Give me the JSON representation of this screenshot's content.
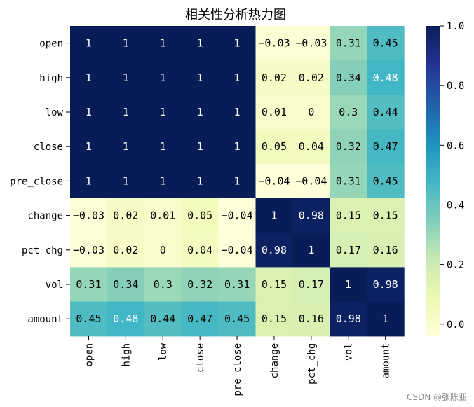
{
  "chart_data": {
    "type": "heatmap",
    "title": "相关性分析热力图",
    "xlabel": "",
    "ylabel": "",
    "row_labels": [
      "open",
      "high",
      "low",
      "close",
      "pre_close",
      "change",
      "pct_chg",
      "vol",
      "amount"
    ],
    "col_labels": [
      "open",
      "high",
      "low",
      "close",
      "pre_close",
      "change",
      "pct_chg",
      "vol",
      "amount"
    ],
    "values": [
      [
        1,
        1,
        1,
        1,
        1,
        -0.03,
        -0.03,
        0.31,
        0.45
      ],
      [
        1,
        1,
        1,
        1,
        1,
        0.02,
        0.02,
        0.34,
        0.48
      ],
      [
        1,
        1,
        1,
        1,
        1,
        0.01,
        0,
        0.3,
        0.44
      ],
      [
        1,
        1,
        1,
        1,
        1,
        0.05,
        0.04,
        0.32,
        0.47
      ],
      [
        1,
        1,
        1,
        1,
        1,
        -0.04,
        -0.04,
        0.31,
        0.45
      ],
      [
        -0.03,
        0.02,
        0.01,
        0.05,
        -0.04,
        1,
        0.98,
        0.15,
        0.15
      ],
      [
        -0.03,
        0.02,
        0,
        0.04,
        -0.04,
        0.98,
        1,
        0.17,
        0.16
      ],
      [
        0.31,
        0.34,
        0.3,
        0.32,
        0.31,
        0.15,
        0.17,
        1,
        0.98
      ],
      [
        0.45,
        0.48,
        0.44,
        0.47,
        0.45,
        0.15,
        0.16,
        0.98,
        1
      ]
    ],
    "colormap": "YlGnBu",
    "colorbar": {
      "range": [
        -0.04,
        1.0
      ],
      "ticks": [
        0.0,
        0.2,
        0.4,
        0.6,
        0.8,
        1.0
      ],
      "tick_labels": [
        "0.0",
        "0.2",
        "0.4",
        "0.6",
        "0.8",
        "1.0"
      ]
    },
    "annotations": true
  },
  "colors": {
    "colormap_stops": [
      "#ffffd9",
      "#edf8b1",
      "#c7e9b4",
      "#7fcdbb",
      "#41b6c4",
      "#1d91c0",
      "#225ea8",
      "#253494",
      "#081d58"
    ],
    "text_dark": "#000000",
    "text_light": "#ffffff"
  },
  "watermark": "CSDN @张陈亚"
}
